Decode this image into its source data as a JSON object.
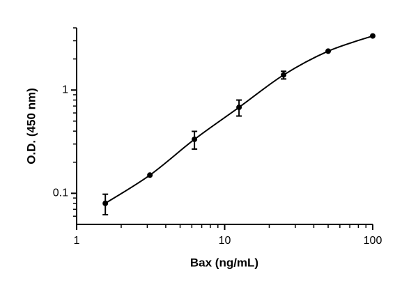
{
  "chart_data": {
    "type": "scatter",
    "x_label": "Bax (ng/mL)",
    "y_label": "O.D. (450 nm)",
    "x": [
      1.5625,
      3.125,
      6.25,
      12.5,
      25,
      50,
      100
    ],
    "series": [
      {
        "color": "#000000",
        "values": [
          0.08,
          0.15,
          0.333,
          0.68,
          1.4,
          2.38,
          3.34
        ],
        "errors": [
          0.018,
          null,
          0.065,
          0.12,
          0.12,
          null,
          null
        ]
      }
    ],
    "xscale": "log",
    "yscale": "log",
    "xlim": [
      1,
      100
    ],
    "ylim": [
      0.05,
      4
    ],
    "xticks": [
      1,
      10,
      100
    ],
    "yticks": [
      0.1,
      1
    ],
    "xminorticks": [
      2,
      3,
      4,
      5,
      6,
      7,
      8,
      9,
      20,
      30,
      40,
      50,
      60,
      70,
      80,
      90
    ],
    "yminorticks": [
      0.06,
      0.07,
      0.08,
      0.09,
      0.2,
      0.3,
      0.4,
      0.5,
      0.6,
      0.7,
      0.8,
      0.9,
      2,
      3,
      4
    ],
    "fit_curve": true
  }
}
